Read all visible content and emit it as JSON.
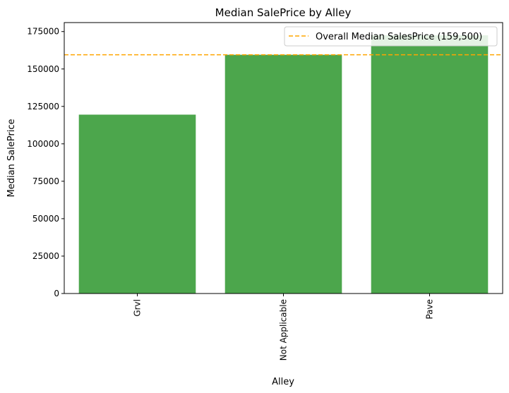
{
  "chart_data": {
    "type": "bar",
    "title": "Median SalePrice by Alley",
    "xlabel": "Alley",
    "ylabel": "Median SalePrice",
    "categories": [
      "Grvl",
      "Not Applicable",
      "Pave"
    ],
    "values": [
      119500,
      159500,
      172500
    ],
    "ylim": [
      0,
      181000
    ],
    "yticks": [
      0,
      25000,
      50000,
      75000,
      100000,
      125000,
      150000,
      175000
    ],
    "reference_line": {
      "value": 159500,
      "label": "Overall Median SalesPrice (159,500)",
      "color": "#FFA500",
      "style": "dashed"
    },
    "bar_color": "#4CA64C",
    "grid": false,
    "legend_position": "top-right",
    "x_tick_rotation": "vertical"
  }
}
